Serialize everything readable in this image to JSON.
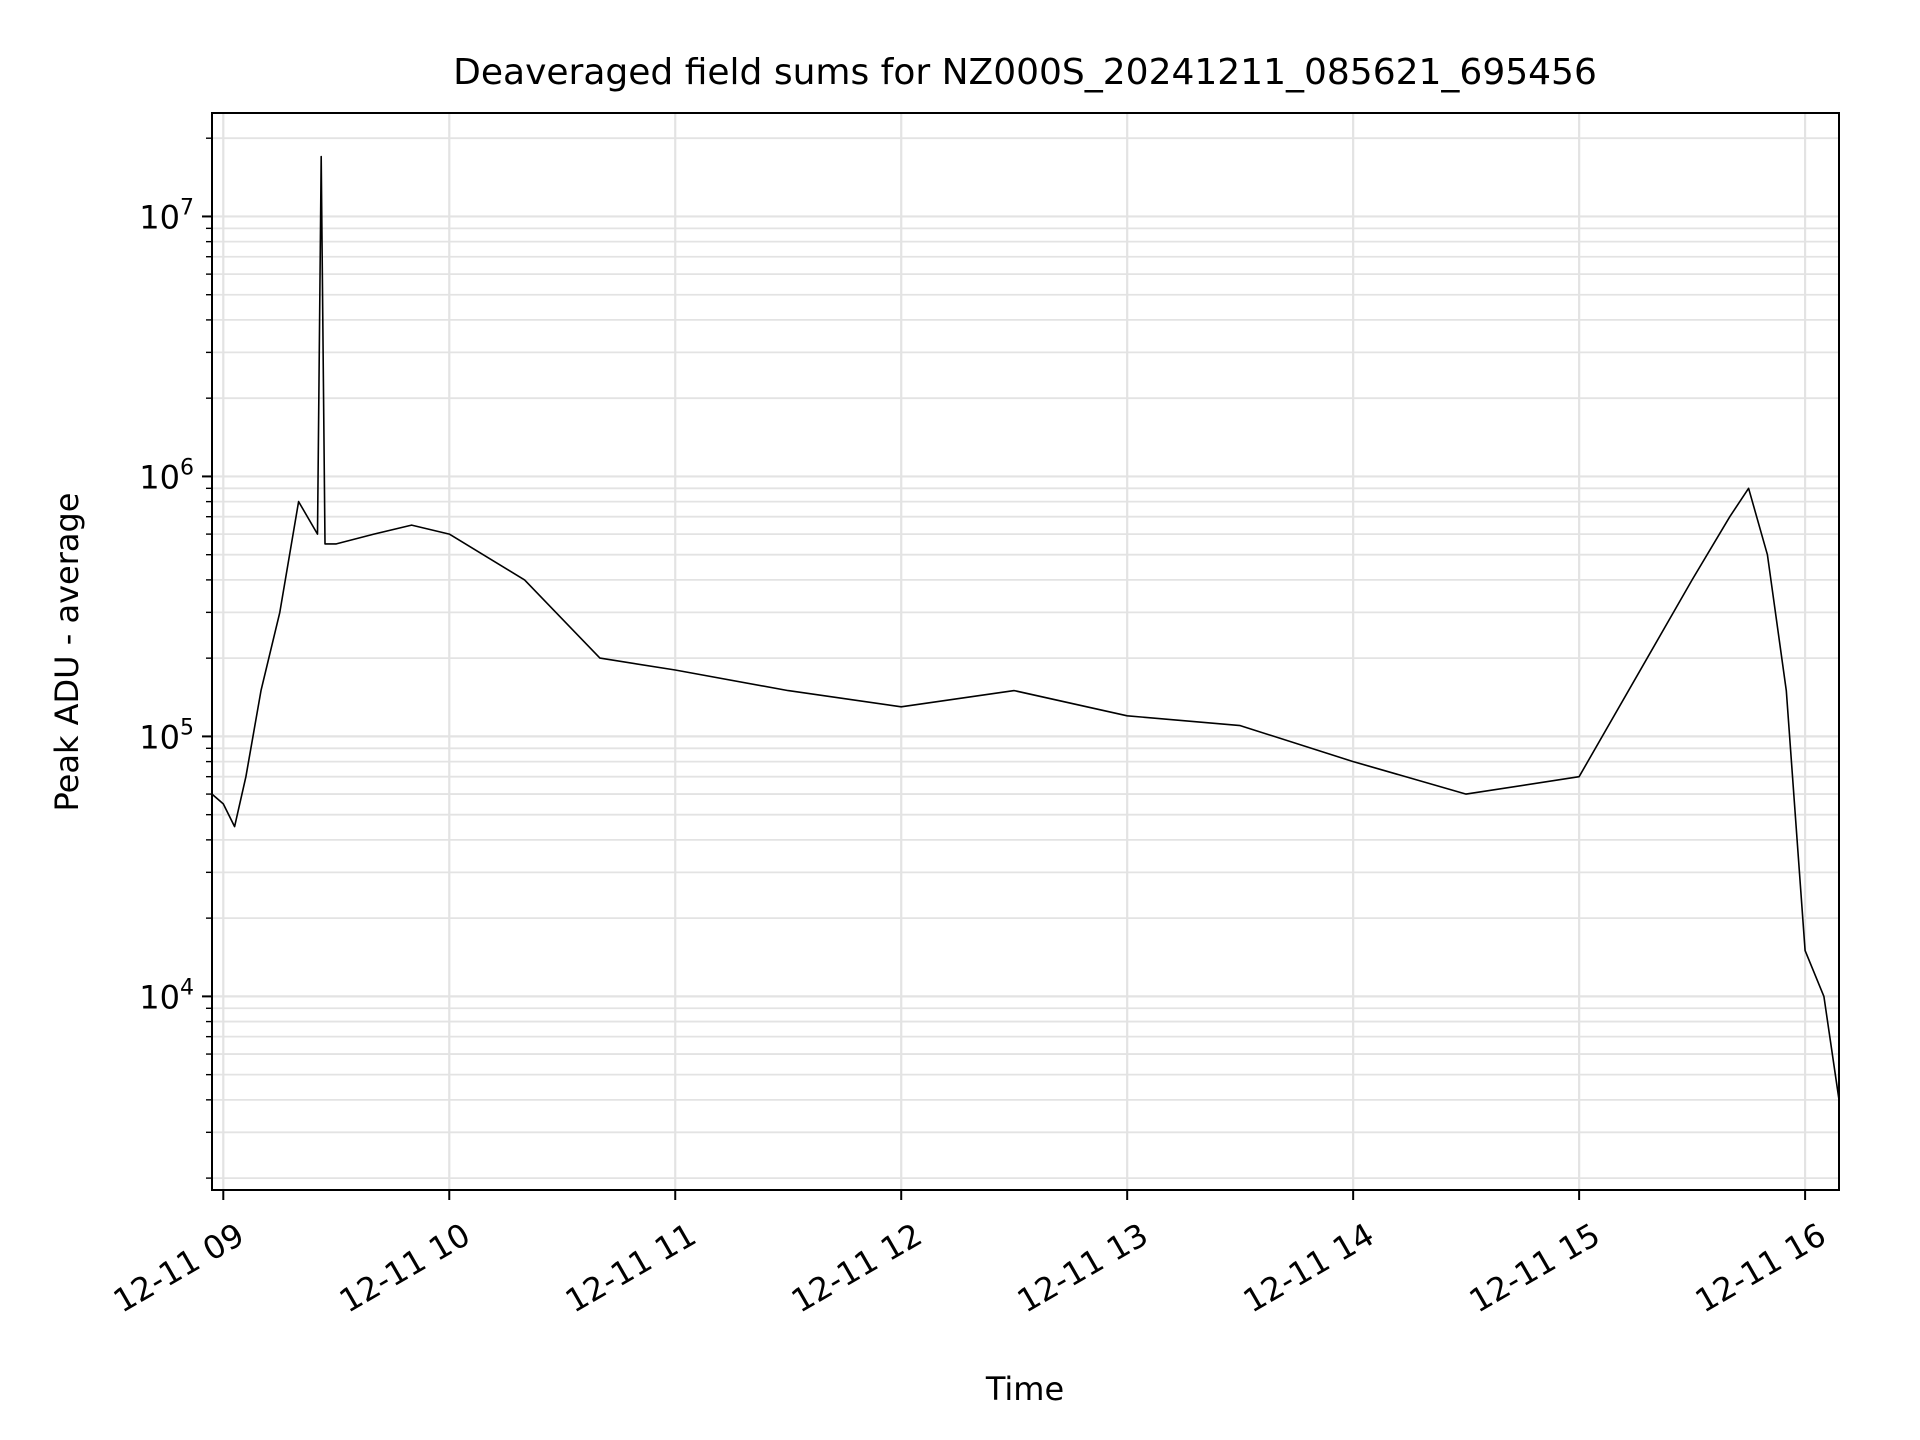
{
  "chart_data": {
    "type": "line",
    "title": "Deaveraged field sums for NZ000S_20241211_085621_695456",
    "xlabel": "Time",
    "ylabel": "Peak ADU - average",
    "yscale": "log",
    "grid": true,
    "line_color": "#000000",
    "xlim": [
      "2024-12-11 08:57",
      "2024-12-11 16:09"
    ],
    "ylim": [
      1800,
      25000000
    ],
    "x_ticks": [
      {
        "label": "12-11 09",
        "hour": 9
      },
      {
        "label": "12-11 10",
        "hour": 10
      },
      {
        "label": "12-11 11",
        "hour": 11
      },
      {
        "label": "12-11 12",
        "hour": 12
      },
      {
        "label": "12-11 13",
        "hour": 13
      },
      {
        "label": "12-11 14",
        "hour": 14
      },
      {
        "label": "12-11 15",
        "hour": 15
      },
      {
        "label": "12-11 16",
        "hour": 16
      }
    ],
    "y_ticks": [
      {
        "base": "10",
        "exp": "4",
        "value": 10000
      },
      {
        "base": "10",
        "exp": "5",
        "value": 100000
      },
      {
        "base": "10",
        "exp": "6",
        "value": 1000000
      },
      {
        "base": "10",
        "exp": "7",
        "value": 10000000
      }
    ],
    "series": [
      {
        "x": [
          "2024-12-11 08:57",
          "2024-12-11 09:00",
          "2024-12-11 09:03",
          "2024-12-11 09:06",
          "2024-12-11 09:10",
          "2024-12-11 09:15",
          "2024-12-11 09:20",
          "2024-12-11 09:25",
          "2024-12-11 09:26",
          "2024-12-11 09:27",
          "2024-12-11 09:30",
          "2024-12-11 09:40",
          "2024-12-11 09:50",
          "2024-12-11 10:00",
          "2024-12-11 10:20",
          "2024-12-11 10:40",
          "2024-12-11 11:00",
          "2024-12-11 11:30",
          "2024-12-11 12:00",
          "2024-12-11 12:30",
          "2024-12-11 13:00",
          "2024-12-11 13:30",
          "2024-12-11 14:00",
          "2024-12-11 14:30",
          "2024-12-11 15:00",
          "2024-12-11 15:30",
          "2024-12-11 15:40",
          "2024-12-11 15:45",
          "2024-12-11 15:50",
          "2024-12-11 15:55",
          "2024-12-11 16:00",
          "2024-12-11 16:05",
          "2024-12-11 16:09"
        ],
        "y": [
          60000,
          55000,
          45000,
          70000,
          150000,
          300000,
          800000,
          600000,
          17000000,
          550000,
          550000,
          600000,
          650000,
          600000,
          400000,
          200000,
          180000,
          150000,
          130000,
          150000,
          120000,
          110000,
          80000,
          60000,
          70000,
          400000,
          700000,
          900000,
          500000,
          150000,
          15000,
          10000,
          4000
        ]
      }
    ]
  }
}
